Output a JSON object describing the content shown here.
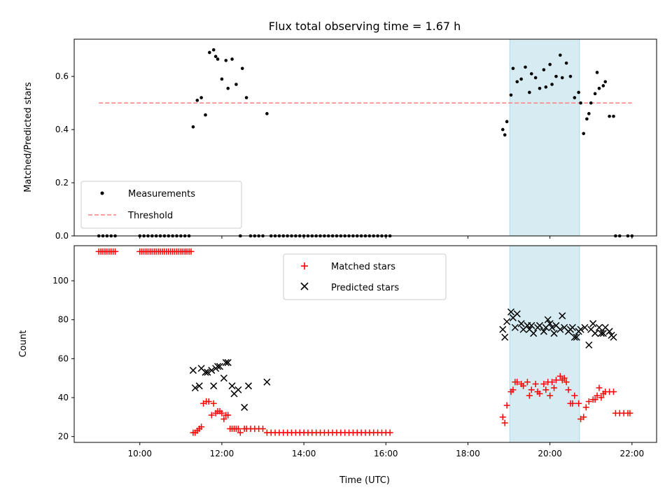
{
  "colors": {
    "measurement": "#000000",
    "threshold": "#ff7f7f",
    "matched": "#ff0000",
    "predicted": "#000000",
    "highlight": "#add8e6"
  },
  "chart_data": [
    {
      "type": "scatter",
      "title": "Flux total observing time = 1.67 h",
      "xlabel": "",
      "ylabel": "Matched/Predicted stars",
      "x_unit": "hours UTC",
      "xlim": [
        8.4,
        22.6
      ],
      "ylim": [
        0,
        0.74
      ],
      "yticks": [
        0.0,
        0.2,
        0.4,
        0.6
      ],
      "ytick_labels": [
        "0.0",
        "0.2",
        "0.4",
        "0.6"
      ],
      "xticks": [
        10,
        12,
        14,
        16,
        18,
        20,
        22
      ],
      "xtick_labels": [],
      "highlight_span": [
        19.02,
        20.72
      ],
      "legend_position": "lower-left",
      "legend": [
        "Measurements",
        "Threshold"
      ],
      "threshold": {
        "name": "Threshold",
        "value": 0.5,
        "x_range": [
          9.0,
          22.0
        ]
      },
      "series": [
        {
          "name": "Measurements",
          "x": [
            9.0,
            9.1,
            9.2,
            9.3,
            9.4,
            10.0,
            10.1,
            10.2,
            10.3,
            10.4,
            10.5,
            10.6,
            10.7,
            10.8,
            10.9,
            11.0,
            11.1,
            11.2,
            11.3,
            11.4,
            11.5,
            11.6,
            11.7,
            11.8,
            11.85,
            11.9,
            12.0,
            12.1,
            12.15,
            12.25,
            12.35,
            12.45,
            12.5,
            12.6,
            12.7,
            12.8,
            12.9,
            13.0,
            13.1,
            13.2,
            13.3,
            13.4,
            13.5,
            13.6,
            13.7,
            13.8,
            13.9,
            14.0,
            14.1,
            14.2,
            14.3,
            14.4,
            14.5,
            14.6,
            14.7,
            14.8,
            14.9,
            15.0,
            15.1,
            15.2,
            15.3,
            15.4,
            15.5,
            15.6,
            15.7,
            15.8,
            15.9,
            16.0,
            16.1,
            18.85,
            18.9,
            18.95,
            19.05,
            19.1,
            19.2,
            19.3,
            19.4,
            19.5,
            19.55,
            19.65,
            19.75,
            19.85,
            19.9,
            20.0,
            20.05,
            20.15,
            20.25,
            20.3,
            20.4,
            20.5,
            20.6,
            20.7,
            20.75,
            20.82,
            20.9,
            20.95,
            21.0,
            21.1,
            21.15,
            21.2,
            21.3,
            21.35,
            21.45,
            21.55,
            21.6,
            21.7,
            21.9,
            22.0
          ],
          "y": [
            0,
            0,
            0,
            0,
            0,
            0,
            0,
            0,
            0,
            0,
            0,
            0,
            0,
            0,
            0,
            0,
            0,
            0,
            0.41,
            0.51,
            0.52,
            0.455,
            0.69,
            0.7,
            0.675,
            0.665,
            0.59,
            0.66,
            0.555,
            0.665,
            0.57,
            0,
            0.63,
            0.52,
            0,
            0,
            0,
            0,
            0.46,
            0,
            0,
            0,
            0,
            0,
            0,
            0,
            0,
            0,
            0,
            0,
            0,
            0,
            0,
            0,
            0,
            0,
            0,
            0,
            0,
            0,
            0,
            0,
            0,
            0,
            0,
            0,
            0,
            0,
            0,
            0.4,
            0.38,
            0.43,
            0.53,
            0.63,
            0.58,
            0.59,
            0.635,
            0.54,
            0.61,
            0.595,
            0.555,
            0.625,
            0.56,
            0.645,
            0.57,
            0.6,
            0.68,
            0.595,
            0.65,
            0.6,
            0.52,
            0.54,
            0.5,
            0.385,
            0.44,
            0.46,
            0.5,
            0.535,
            0.615,
            0.555,
            0.565,
            0.58,
            0.45,
            0.45,
            0,
            0,
            0,
            0
          ]
        }
      ]
    },
    {
      "type": "scatter",
      "title": "",
      "xlabel": "Time (UTC)",
      "ylabel": "Count",
      "x_unit": "hours UTC",
      "xlim": [
        8.4,
        22.6
      ],
      "ylim": [
        17,
        118
      ],
      "yticks": [
        20,
        40,
        60,
        80,
        100
      ],
      "ytick_labels": [
        "20",
        "40",
        "60",
        "80",
        "100"
      ],
      "xticks": [
        10,
        12,
        14,
        16,
        18,
        20,
        22
      ],
      "xtick_labels": [
        "10:00",
        "12:00",
        "14:00",
        "16:00",
        "18:00",
        "20:00",
        "22:00"
      ],
      "highlight_span": [
        19.02,
        20.72
      ],
      "legend_position": "upper-center",
      "legend": [
        "Matched stars",
        "Predicted stars"
      ],
      "series": [
        {
          "name": "Matched stars",
          "marker": "plus",
          "x": [
            9.0,
            9.05,
            9.1,
            9.15,
            9.2,
            9.25,
            9.3,
            9.35,
            9.4,
            10.0,
            10.05,
            10.1,
            10.15,
            10.2,
            10.25,
            10.3,
            10.35,
            10.4,
            10.45,
            10.5,
            10.55,
            10.6,
            10.65,
            10.7,
            10.75,
            10.8,
            10.85,
            10.9,
            10.95,
            11.0,
            11.05,
            11.1,
            11.15,
            11.2,
            11.25,
            11.3,
            11.35,
            11.4,
            11.45,
            11.5,
            11.55,
            11.62,
            11.68,
            11.75,
            11.8,
            11.85,
            11.9,
            11.95,
            12.0,
            12.05,
            12.1,
            12.15,
            12.2,
            12.25,
            12.3,
            12.35,
            12.4,
            12.45,
            12.55,
            12.6,
            12.7,
            12.8,
            12.9,
            13.0,
            13.1,
            13.2,
            13.3,
            13.4,
            13.5,
            13.6,
            13.7,
            13.8,
            13.9,
            14.0,
            14.1,
            14.2,
            14.3,
            14.4,
            14.5,
            14.6,
            14.7,
            14.8,
            14.9,
            15.0,
            15.1,
            15.2,
            15.3,
            15.4,
            15.5,
            15.6,
            15.7,
            15.8,
            15.9,
            16.0,
            16.1,
            18.85,
            18.9,
            18.95,
            19.05,
            19.1,
            19.15,
            19.2,
            19.3,
            19.35,
            19.45,
            19.5,
            19.55,
            19.65,
            19.7,
            19.75,
            19.85,
            19.9,
            19.95,
            20.0,
            20.05,
            20.1,
            20.15,
            20.25,
            20.3,
            20.35,
            20.4,
            20.45,
            20.5,
            20.55,
            20.6,
            20.7,
            20.75,
            20.82,
            20.88,
            20.95,
            21.05,
            21.1,
            21.15,
            21.2,
            21.25,
            21.3,
            21.35,
            21.45,
            21.55,
            21.6,
            21.7,
            21.8,
            21.9,
            21.95
          ],
          "y": [
            115,
            115,
            115,
            115,
            115,
            115,
            115,
            115,
            115,
            115,
            115,
            115,
            115,
            115,
            115,
            115,
            115,
            115,
            115,
            115,
            115,
            115,
            115,
            115,
            115,
            115,
            115,
            115,
            115,
            115,
            115,
            115,
            115,
            115,
            115,
            22,
            22,
            23,
            24,
            25,
            37,
            38,
            38,
            31,
            37,
            32,
            33,
            33,
            32,
            29,
            31,
            31,
            24,
            24,
            24,
            24,
            24,
            22,
            24,
            24,
            24,
            24,
            24,
            24,
            22,
            22,
            22,
            22,
            22,
            22,
            22,
            22,
            22,
            22,
            22,
            22,
            22,
            22,
            22,
            22,
            22,
            22,
            22,
            22,
            22,
            22,
            22,
            22,
            22,
            22,
            22,
            22,
            22,
            22,
            22,
            30,
            27,
            36,
            43,
            44,
            48,
            48,
            47,
            46,
            48,
            41,
            44,
            47,
            43,
            42,
            47,
            44,
            48,
            41,
            48,
            45,
            49,
            51,
            49,
            50,
            48,
            44,
            37,
            37,
            41,
            37,
            29,
            30,
            35,
            38,
            39,
            39,
            41,
            45,
            40,
            42,
            43,
            43,
            43,
            32,
            32,
            32,
            32,
            32
          ]
        },
        {
          "name": "Predicted stars",
          "marker": "x",
          "x": [
            11.3,
            11.35,
            11.45,
            11.5,
            11.6,
            11.65,
            11.75,
            11.8,
            11.85,
            11.9,
            11.95,
            12.05,
            12.1,
            12.15,
            12.25,
            12.3,
            12.4,
            12.55,
            12.65,
            13.1,
            18.85,
            18.9,
            18.95,
            19.05,
            19.1,
            19.15,
            19.2,
            19.3,
            19.35,
            19.45,
            19.5,
            19.55,
            19.6,
            19.7,
            19.75,
            19.85,
            19.9,
            19.95,
            20.0,
            20.05,
            20.1,
            20.15,
            20.25,
            20.3,
            20.35,
            20.45,
            20.5,
            20.55,
            20.6,
            20.65,
            20.7,
            20.75,
            20.85,
            20.95,
            21.0,
            21.05,
            21.1,
            21.2,
            21.25,
            21.3,
            21.35,
            21.45,
            21.5,
            21.55
          ],
          "y": [
            54,
            45,
            46,
            55,
            53,
            53,
            54,
            46,
            55,
            56,
            56,
            50,
            58,
            58,
            46,
            42,
            44,
            35,
            46,
            48,
            75,
            71,
            79,
            84,
            81,
            76,
            83,
            78,
            75,
            77,
            75,
            77,
            73,
            76,
            77,
            74,
            76,
            80,
            78,
            76,
            73,
            77,
            75,
            82,
            76,
            74,
            75,
            76,
            71,
            71,
            74,
            75,
            76,
            67,
            75,
            78,
            73,
            76,
            73,
            73,
            76,
            74,
            72,
            71
          ]
        }
      ]
    }
  ]
}
